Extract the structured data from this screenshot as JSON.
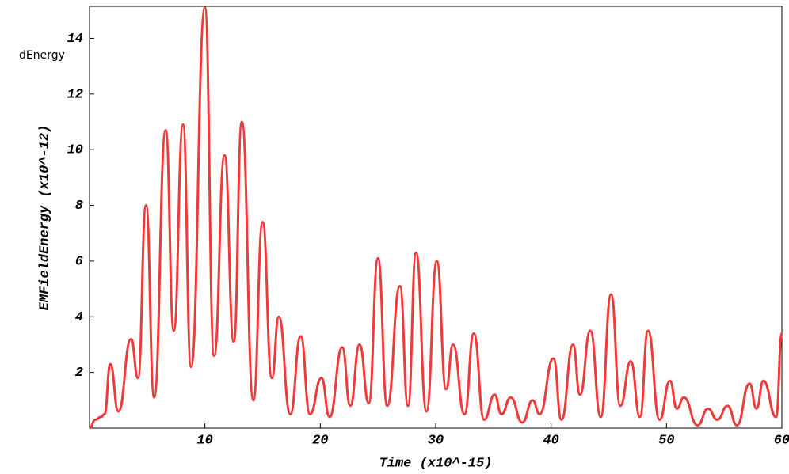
{
  "chart_data": {
    "type": "line",
    "legend_text": "dEnergy",
    "xlabel": "Time (x10^-15)",
    "ylabel": "EMFieldEnergy (x10^-12)",
    "xlim": [
      0,
      60
    ],
    "ylim": [
      0,
      15.15
    ],
    "xticks": [
      10,
      20,
      30,
      40,
      50,
      60
    ],
    "yticks": [
      2,
      4,
      6,
      8,
      10,
      12,
      14
    ],
    "series": [
      {
        "color": "#f03a3a",
        "x": [
          0,
          0.5,
          1,
          1.3,
          1.8,
          2.5,
          3.6,
          4.2,
          4.9,
          5.6,
          6.6,
          7.3,
          8.1,
          8.8,
          10.0,
          10.8,
          11.7,
          12.5,
          13.2,
          14.2,
          15.0,
          15.8,
          16.4,
          17.4,
          18.3,
          19.1,
          20.1,
          20.8,
          21.9,
          22.6,
          23.4,
          24.2,
          25.0,
          25.8,
          26.9,
          27.6,
          28.3,
          29.2,
          30.1,
          30.9,
          31.5,
          32.5,
          33.3,
          34.2,
          35.1,
          35.7,
          36.5,
          37.5,
          38.4,
          39.0,
          40.2,
          40.9,
          41.9,
          42.5,
          43.4,
          44.3,
          45.2,
          46.0,
          46.9,
          47.7,
          48.4,
          49.4,
          50.3,
          50.9,
          51.5,
          52.7,
          53.6,
          54.4,
          55.3,
          56.1,
          57.2,
          57.8,
          58.4,
          59.5,
          60
        ],
        "values": [
          0,
          0.3,
          0.4,
          0.5,
          2.3,
          0.6,
          3.2,
          1.8,
          8.0,
          1.1,
          10.7,
          3.5,
          10.9,
          2.2,
          15.1,
          2.6,
          9.8,
          3.1,
          11.0,
          1.0,
          7.4,
          1.8,
          4.0,
          0.5,
          3.3,
          0.5,
          1.8,
          0.4,
          2.9,
          0.8,
          3.0,
          0.9,
          6.1,
          0.8,
          5.1,
          0.8,
          6.3,
          0.6,
          6.0,
          1.4,
          3.0,
          0.5,
          3.4,
          0.3,
          1.2,
          0.5,
          1.1,
          0.2,
          1.0,
          0.5,
          2.5,
          0.3,
          3.0,
          1.2,
          3.5,
          0.4,
          4.8,
          0.8,
          2.4,
          0.4,
          3.5,
          0.3,
          1.7,
          0.7,
          1.1,
          0.1,
          0.7,
          0.3,
          0.8,
          0.1,
          1.6,
          0.7,
          1.7,
          0.4,
          3.4
        ]
      }
    ]
  }
}
